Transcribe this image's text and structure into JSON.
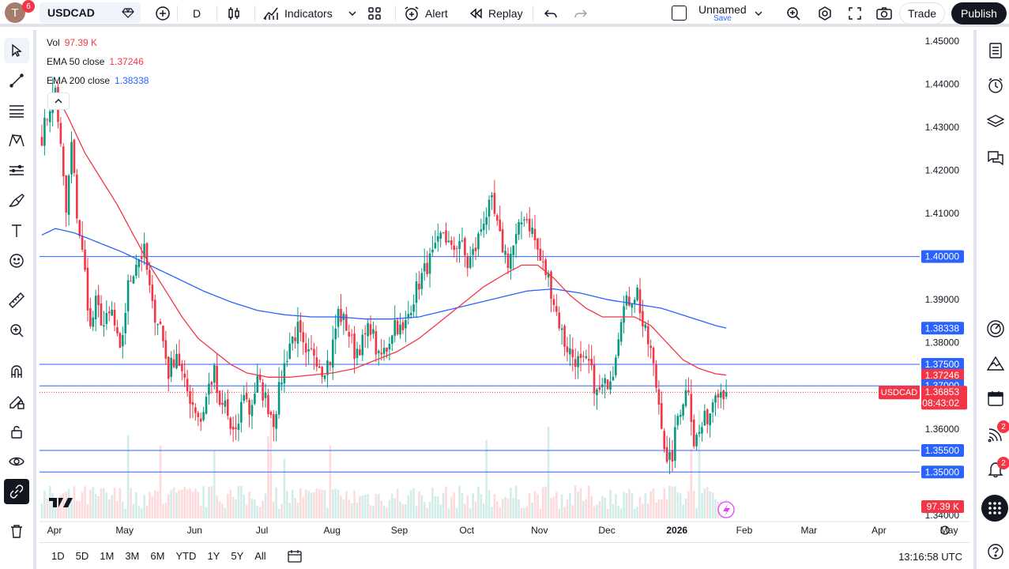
{
  "topbar": {
    "avatar_letter": "T",
    "notif_count": "6",
    "symbol": "USDCAD",
    "interval": "D",
    "indicators_label": "Indicators",
    "alert_label": "Alert",
    "replay_label": "Replay",
    "layout_name": "Unnamed",
    "layout_save": "Save",
    "trade_label": "Trade",
    "publish_label": "Publish"
  },
  "legend": {
    "vol_label": "Vol",
    "vol_value": "97.39 K",
    "ema50_label": "EMA 50 close",
    "ema50_value": "1.37246",
    "ema200_label": "EMA 200 close",
    "ema200_value": "1.38338"
  },
  "right_sidebar": {
    "news_badge": "2",
    "alerts_badge": "2"
  },
  "bottombar": {
    "ranges": [
      "1D",
      "5D",
      "1M",
      "3M",
      "6M",
      "YTD",
      "1Y",
      "5Y",
      "All"
    ],
    "clock": "13:16:58 UTC"
  },
  "colors": {
    "up": "#089981",
    "down": "#f23645",
    "ema50": "#f23645",
    "ema200": "#2962ff",
    "hline": "#2962ff"
  },
  "chart_data": {
    "type": "candlestick",
    "symbol": "USDCAD",
    "ylim": [
      1.3385,
      1.4522
    ],
    "y_ticks": [
      "1.45000",
      "1.44000",
      "1.43000",
      "1.42000",
      "1.41000",
      "1.40000",
      "1.39000",
      "1.38000",
      "1.37000",
      "1.36000",
      "1.35000",
      "1.34000"
    ],
    "x_labels": [
      {
        "label": "Apr",
        "i": 0
      },
      {
        "label": "May",
        "i": 26
      },
      {
        "label": "Jun",
        "i": 52
      },
      {
        "label": "Jul",
        "i": 77
      },
      {
        "label": "Aug",
        "i": 103
      },
      {
        "label": "Sep",
        "i": 128
      },
      {
        "label": "Oct",
        "i": 153
      },
      {
        "label": "Nov",
        "i": 180
      },
      {
        "label": "Dec",
        "i": 205
      },
      {
        "label": "2026",
        "i": 231
      },
      {
        "label": "Feb",
        "i": 256
      },
      {
        "label": "Mar",
        "i": 280
      },
      {
        "label": "Apr",
        "i": 306
      },
      {
        "label": "May",
        "i": 332
      }
    ],
    "horizontal_lines": [
      1.4,
      1.375,
      1.37,
      1.355,
      1.35
    ],
    "price_labels": [
      {
        "text": "1.40000",
        "value": 1.4,
        "kind": "line"
      },
      {
        "text": "1.38338",
        "value": 1.38338,
        "kind": "ema200"
      },
      {
        "text": "1.37500",
        "value": 1.375,
        "kind": "line"
      },
      {
        "text": "1.37246",
        "value": 1.37246,
        "kind": "ema50"
      },
      {
        "text": "1.37000",
        "value": 1.37,
        "kind": "line"
      },
      {
        "text": "1.36853",
        "value": 1.36853,
        "kind": "last",
        "symbol": "USDCAD",
        "countdown": "08:43:02"
      },
      {
        "text": "1.35500",
        "value": 1.355,
        "kind": "line"
      },
      {
        "text": "1.35000",
        "value": 1.35,
        "kind": "line"
      },
      {
        "text": "97.39 K",
        "value": 97.39,
        "kind": "volume"
      }
    ],
    "anchors": [
      [
        0,
        1.428
      ],
      [
        3,
        1.435
      ],
      [
        5,
        1.439
      ],
      [
        7,
        1.425
      ],
      [
        9,
        1.41
      ],
      [
        11,
        1.426
      ],
      [
        13,
        1.41
      ],
      [
        16,
        1.396
      ],
      [
        18,
        1.383
      ],
      [
        20,
        1.389
      ],
      [
        23,
        1.384
      ],
      [
        26,
        1.387
      ],
      [
        29,
        1.377
      ],
      [
        32,
        1.393
      ],
      [
        35,
        1.399
      ],
      [
        38,
        1.401
      ],
      [
        41,
        1.388
      ],
      [
        44,
        1.384
      ],
      [
        47,
        1.373
      ],
      [
        50,
        1.378
      ],
      [
        53,
        1.37
      ],
      [
        56,
        1.366
      ],
      [
        59,
        1.362
      ],
      [
        62,
        1.37
      ],
      [
        64,
        1.373
      ],
      [
        66,
        1.364
      ],
      [
        68,
        1.366
      ],
      [
        70,
        1.36
      ],
      [
        72,
        1.358
      ],
      [
        75,
        1.369
      ],
      [
        77,
        1.364
      ],
      [
        80,
        1.371
      ],
      [
        83,
        1.367
      ],
      [
        86,
        1.362
      ],
      [
        89,
        1.372
      ],
      [
        92,
        1.38
      ],
      [
        95,
        1.383
      ],
      [
        98,
        1.376
      ],
      [
        101,
        1.378
      ],
      [
        104,
        1.374
      ],
      [
        107,
        1.376
      ],
      [
        110,
        1.387
      ],
      [
        113,
        1.384
      ],
      [
        116,
        1.378
      ],
      [
        119,
        1.38
      ],
      [
        122,
        1.384
      ],
      [
        125,
        1.376
      ],
      [
        128,
        1.379
      ],
      [
        131,
        1.385
      ],
      [
        134,
        1.382
      ],
      [
        137,
        1.389
      ],
      [
        140,
        1.394
      ],
      [
        143,
        1.398
      ],
      [
        146,
        1.401
      ],
      [
        149,
        1.406
      ],
      [
        152,
        1.401
      ],
      [
        155,
        1.404
      ],
      [
        158,
        1.398
      ],
      [
        161,
        1.402
      ],
      [
        164,
        1.409
      ],
      [
        167,
        1.412
      ],
      [
        170,
        1.404
      ],
      [
        173,
        1.399
      ],
      [
        176,
        1.404
      ],
      [
        179,
        1.41
      ],
      [
        182,
        1.406
      ],
      [
        185,
        1.399
      ],
      [
        188,
        1.395
      ],
      [
        191,
        1.387
      ],
      [
        194,
        1.38
      ],
      [
        197,
        1.377
      ],
      [
        200,
        1.375
      ],
      [
        203,
        1.375
      ],
      [
        206,
        1.368
      ],
      [
        209,
        1.37
      ],
      [
        212,
        1.374
      ],
      [
        215,
        1.387
      ],
      [
        218,
        1.39
      ],
      [
        221,
        1.392
      ],
      [
        223,
        1.384
      ],
      [
        226,
        1.378
      ],
      [
        228,
        1.37
      ],
      [
        230,
        1.362
      ],
      [
        232,
        1.351
      ],
      [
        234,
        1.354
      ],
      [
        236,
        1.363
      ],
      [
        238,
        1.367
      ],
      [
        240,
        1.37
      ],
      [
        242,
        1.357
      ],
      [
        244,
        1.359
      ],
      [
        246,
        1.362
      ],
      [
        248,
        1.364
      ],
      [
        250,
        1.37
      ],
      [
        252,
        1.369
      ],
      [
        254,
        1.3685
      ]
    ],
    "ema50_anchors": [
      [
        5,
        1.438
      ],
      [
        10,
        1.432
      ],
      [
        16,
        1.424
      ],
      [
        22,
        1.418
      ],
      [
        28,
        1.412
      ],
      [
        34,
        1.405
      ],
      [
        40,
        1.398
      ],
      [
        46,
        1.392
      ],
      [
        52,
        1.386
      ],
      [
        58,
        1.381
      ],
      [
        64,
        1.378
      ],
      [
        70,
        1.375
      ],
      [
        76,
        1.373
      ],
      [
        84,
        1.372
      ],
      [
        92,
        1.372
      ],
      [
        100,
        1.3725
      ],
      [
        108,
        1.373
      ],
      [
        116,
        1.374
      ],
      [
        124,
        1.376
      ],
      [
        132,
        1.378
      ],
      [
        140,
        1.381
      ],
      [
        148,
        1.385
      ],
      [
        156,
        1.389
      ],
      [
        164,
        1.393
      ],
      [
        172,
        1.396
      ],
      [
        178,
        1.398
      ],
      [
        184,
        1.398
      ],
      [
        190,
        1.395
      ],
      [
        196,
        1.391
      ],
      [
        202,
        1.388
      ],
      [
        208,
        1.386
      ],
      [
        214,
        1.386
      ],
      [
        220,
        1.386
      ],
      [
        226,
        1.384
      ],
      [
        232,
        1.38
      ],
      [
        238,
        1.376
      ],
      [
        244,
        1.374
      ],
      [
        250,
        1.3728
      ],
      [
        254,
        1.3725
      ]
    ],
    "ema200_anchors": [
      [
        0,
        1.405
      ],
      [
        5,
        1.4065
      ],
      [
        12,
        1.4055
      ],
      [
        20,
        1.4035
      ],
      [
        30,
        1.401
      ],
      [
        40,
        1.398
      ],
      [
        50,
        1.395
      ],
      [
        60,
        1.392
      ],
      [
        70,
        1.3895
      ],
      [
        80,
        1.3875
      ],
      [
        90,
        1.3865
      ],
      [
        100,
        1.386
      ],
      [
        110,
        1.386
      ],
      [
        120,
        1.3855
      ],
      [
        130,
        1.3855
      ],
      [
        140,
        1.386
      ],
      [
        150,
        1.3875
      ],
      [
        160,
        1.389
      ],
      [
        170,
        1.3905
      ],
      [
        180,
        1.392
      ],
      [
        190,
        1.3925
      ],
      [
        200,
        1.3915
      ],
      [
        210,
        1.39
      ],
      [
        220,
        1.389
      ],
      [
        230,
        1.388
      ],
      [
        240,
        1.386
      ],
      [
        250,
        1.384
      ],
      [
        254,
        1.3834
      ]
    ]
  }
}
